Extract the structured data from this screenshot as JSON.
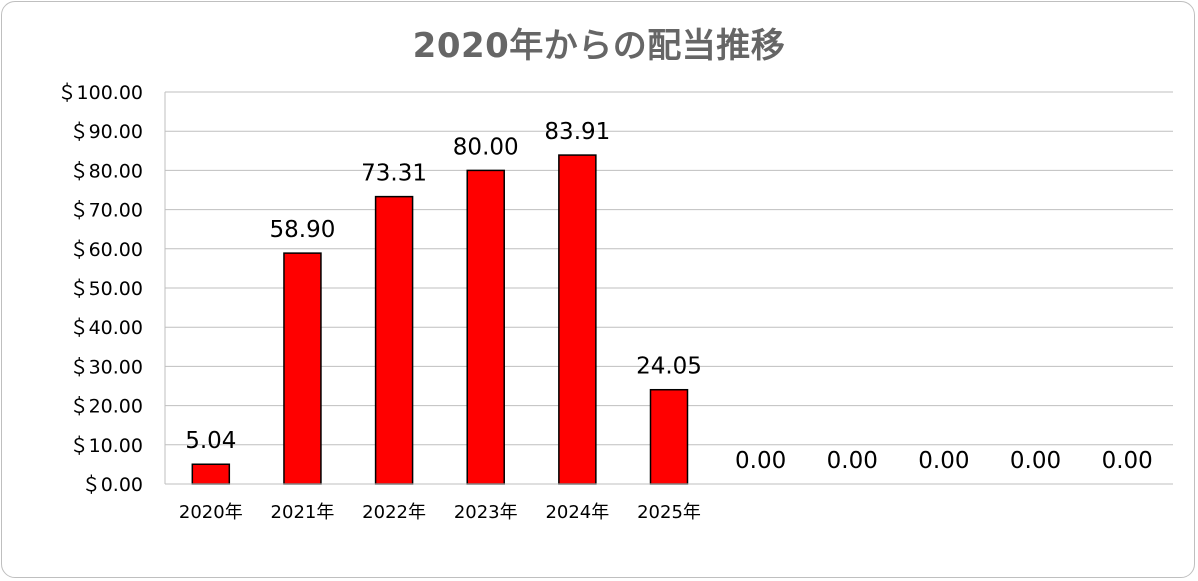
{
  "chart_data": {
    "type": "bar",
    "title": "2020年からの配当推移",
    "xlabel": "",
    "ylabel": "",
    "categories": [
      "2020年",
      "2021年",
      "2022年",
      "2023年",
      "2024年",
      "2025年",
      "",
      "",
      "",
      "",
      ""
    ],
    "values": [
      5.04,
      58.9,
      73.31,
      80.0,
      83.91,
      24.05,
      0.0,
      0.0,
      0.0,
      0.0,
      0.0
    ],
    "data_labels": [
      "5.04",
      "58.90",
      "73.31",
      "80.00",
      "83.91",
      "24.05",
      "0.00",
      "0.00",
      "0.00",
      "0.00",
      "0.00"
    ],
    "ylim": [
      0,
      100
    ],
    "yticks": [
      0,
      10,
      20,
      30,
      40,
      50,
      60,
      70,
      80,
      90,
      100
    ],
    "ytick_labels": [
      "＄0.00",
      "＄10.00",
      "＄20.00",
      "＄30.00",
      "＄40.00",
      "＄50.00",
      "＄60.00",
      "＄70.00",
      "＄80.00",
      "＄90.00",
      "＄100.00"
    ],
    "grid": true,
    "legend": "none",
    "colors": {
      "bar_fill": "#ff0000",
      "bar_stroke": "#000000",
      "grid": "#bfbfbf",
      "title": "#666666"
    }
  }
}
